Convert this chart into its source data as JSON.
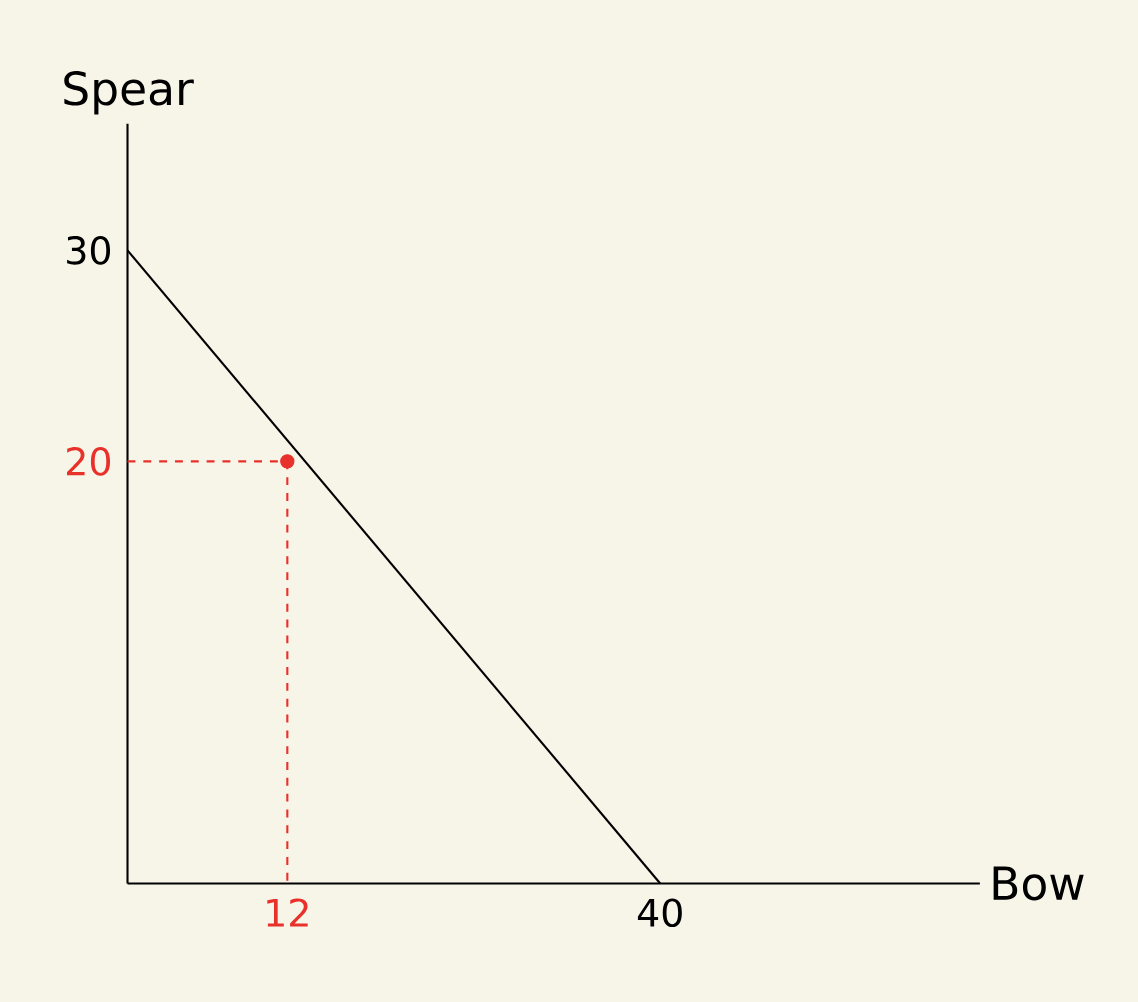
{
  "chart_data": {
    "type": "line",
    "xlabel": "Bow",
    "ylabel": "Spear",
    "xlim": [
      0,
      64
    ],
    "ylim": [
      0,
      36
    ],
    "xticks": [
      12,
      40
    ],
    "yticks": [
      20,
      30
    ],
    "grid": false,
    "series": [
      {
        "color": "#000000",
        "x": [
          0,
          40
        ],
        "values": [
          30,
          0
        ],
        "marker": "none"
      },
      {
        "color": "#e8312a",
        "x": [
          0,
          12
        ],
        "values": [
          20,
          20
        ],
        "marker": "none",
        "line_style": "dashed"
      },
      {
        "color": "#e8312a",
        "x": [
          12,
          12
        ],
        "values": [
          20,
          0
        ],
        "marker": "none",
        "line_style": "dashed"
      },
      {
        "type": "scatter",
        "color": "#e8312a",
        "x": [
          12
        ],
        "values": [
          20
        ],
        "marker": "circle"
      }
    ]
  }
}
